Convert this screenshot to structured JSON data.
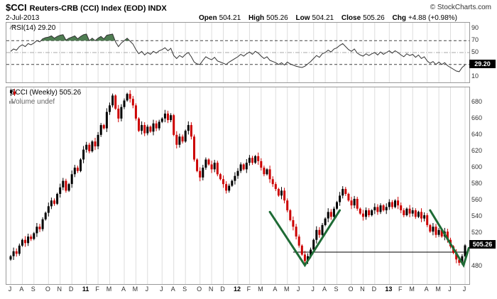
{
  "header": {
    "symbol": "$CCI",
    "title": "Reuters-CRB (CCI) Index (EOD) INDX",
    "copyright": "© StockCharts.com",
    "date": "2-Jul-2013",
    "quote": {
      "open_label": "Open",
      "open_value": "504.21",
      "high_label": "High",
      "high_value": "505.26",
      "low_label": "Low",
      "low_value": "504.21",
      "close_label": "Close",
      "close_value": "505.26",
      "chg_label": "Chg",
      "chg_value": "+4.88 (+0.98%)"
    }
  },
  "rsi_panel": {
    "label": "RSI(14) 29.20",
    "value_box": "29.20",
    "value": 29.2,
    "ticks": [
      90,
      70,
      50,
      30,
      10
    ]
  },
  "main_panel": {
    "label": "$CCI (Weekly) 505.26",
    "volume_label": "Volume undef",
    "value_box": "505.26",
    "value": 505.26,
    "ticks": [
      680,
      660,
      640,
      620,
      600,
      580,
      560,
      540,
      520,
      480
    ]
  },
  "x_axis": {
    "labels": [
      "J",
      "A",
      "S",
      "O",
      "N",
      "D",
      "11",
      "F",
      "M",
      "A",
      "M",
      "J",
      "J",
      "A",
      "S",
      "O",
      "N",
      "D",
      "12",
      "F",
      "M",
      "A",
      "M",
      "J",
      "J",
      "A",
      "S",
      "O",
      "N",
      "D",
      "13",
      "F",
      "M",
      "A",
      "M",
      "J",
      "J"
    ],
    "tick_weeks": [
      0,
      4,
      8,
      13,
      17,
      21,
      26,
      30,
      34,
      39,
      43,
      47,
      52,
      56,
      60,
      65,
      69,
      73,
      78,
      82,
      86,
      91,
      95,
      99,
      104,
      108,
      112,
      117,
      121,
      125,
      130,
      134,
      138,
      143,
      147,
      151,
      156
    ]
  },
  "chart_data": [
    {
      "type": "line",
      "name": "RSI(14)",
      "panel": "indicator",
      "ylim": [
        0,
        100
      ],
      "levels": {
        "overbought": 70,
        "midline": 50,
        "oversold": 30
      },
      "last_value": 29.2,
      "line_color": "#333333",
      "fill_above_70_color": "#4f7d52",
      "values": [
        52,
        56,
        54,
        60,
        63,
        60,
        65,
        63,
        66,
        70,
        68,
        73,
        75,
        76,
        78,
        74,
        77,
        79,
        80,
        71,
        74,
        76,
        78,
        73,
        77,
        80,
        81,
        70,
        74,
        70,
        74,
        77,
        73,
        79,
        80,
        81,
        68,
        60,
        66,
        70,
        74,
        69,
        64,
        55,
        48,
        52,
        46,
        50,
        47,
        52,
        49,
        53,
        55,
        58,
        53,
        57,
        45,
        40,
        45,
        42,
        47,
        50,
        43,
        34,
        31,
        30,
        37,
        43,
        40,
        38,
        42,
        36,
        34,
        32,
        30,
        34,
        37,
        40,
        43,
        47,
        44,
        48,
        51,
        47,
        52,
        49,
        44,
        40,
        43,
        37,
        35,
        33,
        30,
        33,
        29,
        34,
        31,
        29,
        27,
        26,
        25,
        27,
        31,
        35,
        40,
        45,
        42,
        48,
        50,
        54,
        51,
        56,
        58,
        62,
        65,
        60,
        55,
        52,
        56,
        49,
        46,
        44,
        48,
        45,
        48,
        50,
        46,
        51,
        47,
        50,
        53,
        49,
        53,
        50,
        46,
        43,
        48,
        45,
        47,
        42,
        46,
        40,
        43,
        36,
        32,
        35,
        30,
        34,
        30,
        33,
        28,
        25,
        22,
        19,
        18,
        25,
        29.2
      ]
    },
    {
      "type": "candlestick",
      "name": "$CCI (Weekly)",
      "timeframe": "weekly, Jul 2010 - Jul 2013",
      "ylim": [
        458,
        698
      ],
      "up_color": "#000000",
      "down_color": "#cc0000",
      "last_ohlc": {
        "open": 504.21,
        "high": 505.26,
        "low": 504.21,
        "close": 505.26
      },
      "closes": [
        492,
        498,
        495,
        505,
        512,
        508,
        516,
        513,
        520,
        528,
        525,
        537,
        545,
        553,
        560,
        556,
        568,
        576,
        584,
        572,
        580,
        592,
        600,
        596,
        610,
        622,
        628,
        620,
        632,
        626,
        640,
        652,
        648,
        668,
        676,
        688,
        672,
        660,
        674,
        682,
        690,
        684,
        676,
        660,
        645,
        652,
        642,
        650,
        644,
        654,
        648,
        656,
        660,
        666,
        658,
        664,
        640,
        628,
        638,
        632,
        645,
        652,
        638,
        610,
        596,
        588,
        600,
        610,
        604,
        598,
        606,
        592,
        586,
        580,
        572,
        578,
        584,
        590,
        596,
        604,
        598,
        606,
        612,
        606,
        614,
        608,
        600,
        592,
        598,
        586,
        580,
        574,
        566,
        572,
        560,
        548,
        536,
        528,
        516,
        505,
        494,
        486,
        492,
        500,
        512,
        524,
        518,
        530,
        538,
        546,
        540,
        550,
        558,
        566,
        574,
        568,
        560,
        554,
        562,
        550,
        544,
        540,
        548,
        542,
        548,
        552,
        546,
        554,
        548,
        552,
        558,
        552,
        560,
        554,
        548,
        542,
        550,
        544,
        548,
        540,
        546,
        538,
        542,
        530,
        522,
        528,
        518,
        524,
        516,
        522,
        512,
        504,
        496,
        488,
        484,
        492,
        505.26
      ],
      "annotations": {
        "trendline_color": "#1e6b35",
        "trendlines": [
          {
            "points": [
              [
                89,
                546
              ],
              [
                101,
                481
              ],
              [
                113,
                548
              ]
            ]
          },
          {
            "points": [
              [
                144,
                548
              ],
              [
                155.5,
                481
              ],
              [
                157.3,
                502
              ]
            ]
          }
        ],
        "support_line": {
          "level": 497,
          "from_week": 97,
          "to_week": 157,
          "color": "#000000"
        }
      }
    }
  ]
}
